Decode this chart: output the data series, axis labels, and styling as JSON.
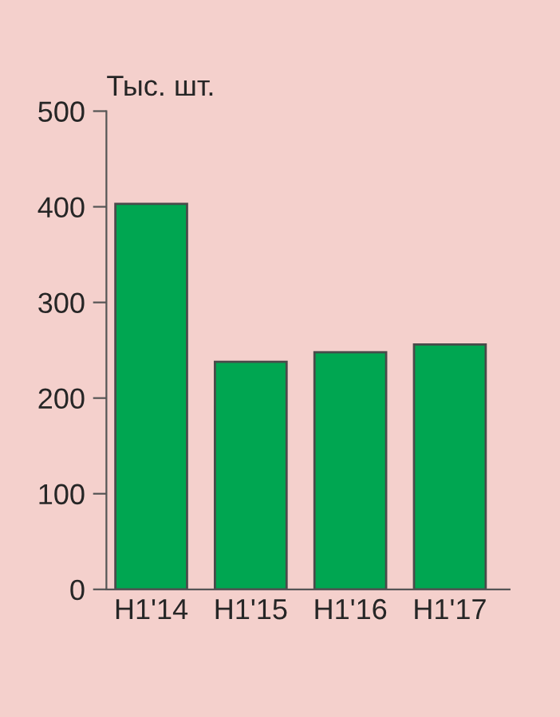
{
  "chart_data": {
    "type": "bar",
    "ylabel": "Тыс. шт.",
    "categories": [
      "H1'14",
      "H1'15",
      "H1'16",
      "H1'17"
    ],
    "values": [
      403,
      238,
      248,
      256
    ],
    "color": "#00a651",
    "ylim": [
      0,
      500
    ],
    "yticks": [
      0,
      100,
      200,
      300,
      400,
      500
    ],
    "grid": false
  }
}
